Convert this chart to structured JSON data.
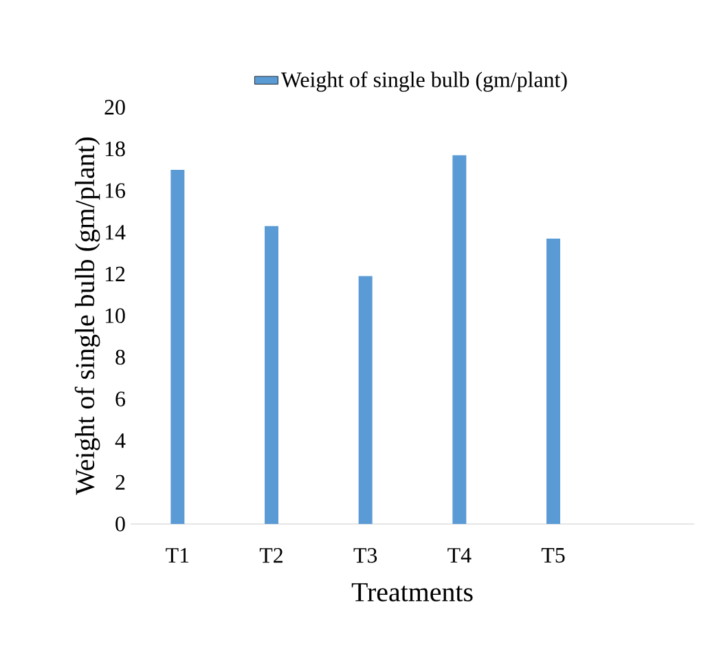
{
  "chart_data": {
    "type": "bar",
    "xlabel": "Treatments",
    "ylabel": "Weight of single bulb (gm/plant)",
    "categories": [
      "T1",
      "T2",
      "T3",
      "T4",
      "T5",
      null
    ],
    "series": [
      {
        "name": "Weight of single bulb (gm/plant)",
        "color": "#5b9bd5",
        "values": [
          17,
          14.3,
          11.9,
          17.7,
          13.7,
          null
        ]
      }
    ],
    "ylim": [
      0,
      20
    ],
    "yticks": [
      0,
      2,
      4,
      6,
      8,
      10,
      12,
      14,
      16,
      18,
      20
    ],
    "legend": "top"
  }
}
